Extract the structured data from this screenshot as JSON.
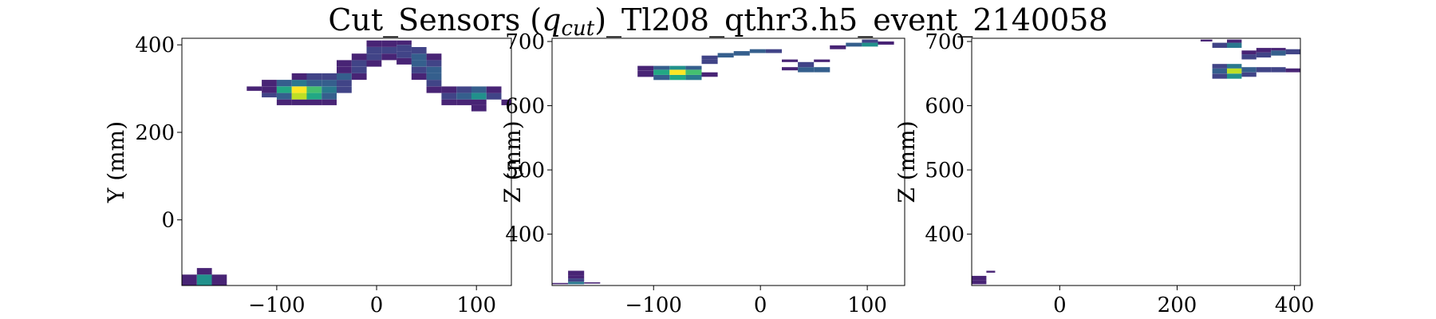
{
  "figure": {
    "title_parts": [
      "Cut_Sensors (",
      "q",
      "cut",
      ")_Tl208_qthr3.h5_event_2140058"
    ]
  },
  "colormap": [
    "#440154",
    "#482475",
    "#414487",
    "#355f8d",
    "#2a788e",
    "#21918c",
    "#22a884",
    "#44bf70",
    "#7ad151",
    "#bddf26",
    "#fde725"
  ],
  "chart_data": [
    {
      "type": "heatmap",
      "xlabel": "",
      "ylabel": "Y (mm)",
      "xlim": [
        -195,
        135
      ],
      "ylim": [
        -150,
        415
      ],
      "xticks": [
        -100,
        0,
        100
      ],
      "xtick_labels": [
        "−100",
        "0",
        "100"
      ],
      "yticks": [
        0,
        200,
        400
      ],
      "ytick_labels": [
        "0",
        "200",
        "400"
      ],
      "cells": [
        {
          "x0": -195,
          "x1": -180,
          "y0": -150,
          "y1": -125,
          "v": 0.05
        },
        {
          "x0": -180,
          "x1": -165,
          "y0": -150,
          "y1": -125,
          "v": 0.45
        },
        {
          "x0": -165,
          "x1": -150,
          "y0": -150,
          "y1": -125,
          "v": 0.05
        },
        {
          "x0": -180,
          "x1": -165,
          "y0": -125,
          "y1": -110,
          "v": 0.08
        },
        {
          "x0": -130,
          "x1": -115,
          "y0": 295,
          "y1": 305,
          "v": 0.05
        },
        {
          "x0": -115,
          "x1": -100,
          "y0": 290,
          "y1": 305,
          "v": 0.1
        },
        {
          "x0": -115,
          "x1": -100,
          "y0": 280,
          "y1": 290,
          "v": 0.2
        },
        {
          "x0": -115,
          "x1": -100,
          "y0": 305,
          "y1": 320,
          "v": 0.05
        },
        {
          "x0": -100,
          "x1": -85,
          "y0": 290,
          "y1": 305,
          "v": 0.55
        },
        {
          "x0": -100,
          "x1": -85,
          "y0": 305,
          "y1": 320,
          "v": 0.25
        },
        {
          "x0": -100,
          "x1": -85,
          "y0": 275,
          "y1": 290,
          "v": 0.3
        },
        {
          "x0": -100,
          "x1": -85,
          "y0": 262,
          "y1": 275,
          "v": 0.05
        },
        {
          "x0": -85,
          "x1": -70,
          "y0": 290,
          "y1": 305,
          "v": 1.0
        },
        {
          "x0": -85,
          "x1": -70,
          "y0": 275,
          "y1": 290,
          "v": 0.9
        },
        {
          "x0": -85,
          "x1": -70,
          "y0": 305,
          "y1": 320,
          "v": 0.35
        },
        {
          "x0": -85,
          "x1": -70,
          "y0": 320,
          "y1": 335,
          "v": 0.1
        },
        {
          "x0": -85,
          "x1": -70,
          "y0": 262,
          "y1": 275,
          "v": 0.12
        },
        {
          "x0": -70,
          "x1": -55,
          "y0": 290,
          "y1": 305,
          "v": 0.7
        },
        {
          "x0": -70,
          "x1": -55,
          "y0": 275,
          "y1": 290,
          "v": 0.6
        },
        {
          "x0": -70,
          "x1": -55,
          "y0": 305,
          "y1": 320,
          "v": 0.3
        },
        {
          "x0": -70,
          "x1": -55,
          "y0": 320,
          "y1": 335,
          "v": 0.15
        },
        {
          "x0": -70,
          "x1": -55,
          "y0": 262,
          "y1": 275,
          "v": 0.1
        },
        {
          "x0": -55,
          "x1": -40,
          "y0": 275,
          "y1": 290,
          "v": 0.3
        },
        {
          "x0": -55,
          "x1": -40,
          "y0": 290,
          "y1": 305,
          "v": 0.35
        },
        {
          "x0": -55,
          "x1": -40,
          "y0": 305,
          "y1": 320,
          "v": 0.25
        },
        {
          "x0": -55,
          "x1": -40,
          "y0": 320,
          "y1": 335,
          "v": 0.2
        },
        {
          "x0": -55,
          "x1": -40,
          "y0": 262,
          "y1": 275,
          "v": 0.06
        },
        {
          "x0": -40,
          "x1": -25,
          "y0": 290,
          "y1": 305,
          "v": 0.15
        },
        {
          "x0": -40,
          "x1": -25,
          "y0": 305,
          "y1": 320,
          "v": 0.2
        },
        {
          "x0": -40,
          "x1": -25,
          "y0": 320,
          "y1": 335,
          "v": 0.25
        },
        {
          "x0": -40,
          "x1": -25,
          "y0": 335,
          "y1": 350,
          "v": 0.1
        },
        {
          "x0": -40,
          "x1": -25,
          "y0": 350,
          "y1": 365,
          "v": 0.05
        },
        {
          "x0": -25,
          "x1": -10,
          "y0": 320,
          "y1": 335,
          "v": 0.1
        },
        {
          "x0": -25,
          "x1": -10,
          "y0": 335,
          "y1": 350,
          "v": 0.15
        },
        {
          "x0": -25,
          "x1": -10,
          "y0": 350,
          "y1": 365,
          "v": 0.2
        },
        {
          "x0": -25,
          "x1": -10,
          "y0": 365,
          "y1": 380,
          "v": 0.1
        },
        {
          "x0": -10,
          "x1": 5,
          "y0": 350,
          "y1": 365,
          "v": 0.1
        },
        {
          "x0": -10,
          "x1": 5,
          "y0": 365,
          "y1": 380,
          "v": 0.2
        },
        {
          "x0": -10,
          "x1": 5,
          "y0": 380,
          "y1": 395,
          "v": 0.15
        },
        {
          "x0": -10,
          "x1": 5,
          "y0": 395,
          "y1": 410,
          "v": 0.05
        },
        {
          "x0": 5,
          "x1": 20,
          "y0": 365,
          "y1": 380,
          "v": 0.1
        },
        {
          "x0": 5,
          "x1": 20,
          "y0": 380,
          "y1": 395,
          "v": 0.15
        },
        {
          "x0": 5,
          "x1": 20,
          "y0": 395,
          "y1": 410,
          "v": 0.1
        },
        {
          "x0": 20,
          "x1": 35,
          "y0": 355,
          "y1": 370,
          "v": 0.05
        },
        {
          "x0": 20,
          "x1": 35,
          "y0": 370,
          "y1": 385,
          "v": 0.15
        },
        {
          "x0": 20,
          "x1": 35,
          "y0": 385,
          "y1": 400,
          "v": 0.2
        },
        {
          "x0": 20,
          "x1": 35,
          "y0": 400,
          "y1": 410,
          "v": 0.08
        },
        {
          "x0": 35,
          "x1": 50,
          "y0": 320,
          "y1": 335,
          "v": 0.08
        },
        {
          "x0": 35,
          "x1": 50,
          "y0": 335,
          "y1": 350,
          "v": 0.15
        },
        {
          "x0": 35,
          "x1": 50,
          "y0": 350,
          "y1": 365,
          "v": 0.25
        },
        {
          "x0": 35,
          "x1": 50,
          "y0": 365,
          "y1": 380,
          "v": 0.25
        },
        {
          "x0": 35,
          "x1": 50,
          "y0": 380,
          "y1": 395,
          "v": 0.15
        },
        {
          "x0": 50,
          "x1": 65,
          "y0": 290,
          "y1": 305,
          "v": 0.1
        },
        {
          "x0": 50,
          "x1": 65,
          "y0": 305,
          "y1": 320,
          "v": 0.15
        },
        {
          "x0": 50,
          "x1": 65,
          "y0": 320,
          "y1": 335,
          "v": 0.3
        },
        {
          "x0": 50,
          "x1": 65,
          "y0": 335,
          "y1": 350,
          "v": 0.25
        },
        {
          "x0": 50,
          "x1": 65,
          "y0": 350,
          "y1": 365,
          "v": 0.15
        },
        {
          "x0": 50,
          "x1": 65,
          "y0": 365,
          "y1": 380,
          "v": 0.1
        },
        {
          "x0": 65,
          "x1": 80,
          "y0": 290,
          "y1": 305,
          "v": 0.1
        },
        {
          "x0": 65,
          "x1": 80,
          "y0": 275,
          "y1": 290,
          "v": 0.2
        },
        {
          "x0": 65,
          "x1": 80,
          "y0": 262,
          "y1": 275,
          "v": 0.05
        },
        {
          "x0": 80,
          "x1": 95,
          "y0": 290,
          "y1": 305,
          "v": 0.2
        },
        {
          "x0": 80,
          "x1": 95,
          "y0": 275,
          "y1": 290,
          "v": 0.3
        },
        {
          "x0": 80,
          "x1": 95,
          "y0": 262,
          "y1": 275,
          "v": 0.1
        },
        {
          "x0": 95,
          "x1": 110,
          "y0": 290,
          "y1": 305,
          "v": 0.25
        },
        {
          "x0": 95,
          "x1": 110,
          "y0": 275,
          "y1": 290,
          "v": 0.45
        },
        {
          "x0": 95,
          "x1": 110,
          "y0": 262,
          "y1": 275,
          "v": 0.1
        },
        {
          "x0": 95,
          "x1": 110,
          "y0": 248,
          "y1": 262,
          "v": 0.05
        },
        {
          "x0": 110,
          "x1": 125,
          "y0": 275,
          "y1": 290,
          "v": 0.2
        },
        {
          "x0": 110,
          "x1": 125,
          "y0": 290,
          "y1": 305,
          "v": 0.1
        },
        {
          "x0": 125,
          "x1": 135,
          "y0": 262,
          "y1": 275,
          "v": 0.06
        }
      ]
    },
    {
      "type": "heatmap",
      "xlabel": "",
      "ylabel": "Z (mm)",
      "xlim": [
        -195,
        135
      ],
      "ylim": [
        320,
        705
      ],
      "xticks": [
        -100,
        0,
        100
      ],
      "xtick_labels": [
        "−100",
        "0",
        "100"
      ],
      "yticks": [
        400,
        500,
        600,
        700
      ],
      "ytick_labels": [
        "400",
        "500",
        "600",
        "700"
      ],
      "cells": [
        {
          "x0": -195,
          "x1": -180,
          "y0": 322,
          "y1": 324,
          "v": 0.05
        },
        {
          "x0": -180,
          "x1": -165,
          "y0": 322,
          "y1": 326,
          "v": 0.4
        },
        {
          "x0": -180,
          "x1": -165,
          "y0": 326,
          "y1": 331,
          "v": 0.15
        },
        {
          "x0": -180,
          "x1": -165,
          "y0": 331,
          "y1": 336,
          "v": 0.1
        },
        {
          "x0": -180,
          "x1": -165,
          "y0": 336,
          "y1": 343,
          "v": 0.05
        },
        {
          "x0": -165,
          "x1": -150,
          "y0": 323,
          "y1": 325,
          "v": 0.05
        },
        {
          "x0": -115,
          "x1": -100,
          "y0": 655,
          "y1": 662,
          "v": 0.1
        },
        {
          "x0": -115,
          "x1": -100,
          "y0": 645,
          "y1": 655,
          "v": 0.05
        },
        {
          "x0": -100,
          "x1": -85,
          "y0": 640,
          "y1": 648,
          "v": 0.3
        },
        {
          "x0": -100,
          "x1": -85,
          "y0": 648,
          "y1": 656,
          "v": 0.55
        },
        {
          "x0": -100,
          "x1": -85,
          "y0": 656,
          "y1": 662,
          "v": 0.25
        },
        {
          "x0": -85,
          "x1": -70,
          "y0": 640,
          "y1": 648,
          "v": 0.6
        },
        {
          "x0": -85,
          "x1": -70,
          "y0": 648,
          "y1": 656,
          "v": 1.0
        },
        {
          "x0": -85,
          "x1": -70,
          "y0": 656,
          "y1": 662,
          "v": 0.45
        },
        {
          "x0": -70,
          "x1": -55,
          "y0": 640,
          "y1": 648,
          "v": 0.4
        },
        {
          "x0": -70,
          "x1": -55,
          "y0": 648,
          "y1": 656,
          "v": 0.7
        },
        {
          "x0": -70,
          "x1": -55,
          "y0": 656,
          "y1": 662,
          "v": 0.3
        },
        {
          "x0": -55,
          "x1": -40,
          "y0": 645,
          "y1": 652,
          "v": 0.1
        },
        {
          "x0": -55,
          "x1": -40,
          "y0": 665,
          "y1": 672,
          "v": 0.15
        },
        {
          "x0": -55,
          "x1": -40,
          "y0": 672,
          "y1": 678,
          "v": 0.2
        },
        {
          "x0": -40,
          "x1": -25,
          "y0": 675,
          "y1": 682,
          "v": 0.25
        },
        {
          "x0": -25,
          "x1": -10,
          "y0": 678,
          "y1": 685,
          "v": 0.3
        },
        {
          "x0": -10,
          "x1": 5,
          "y0": 682,
          "y1": 688,
          "v": 0.3
        },
        {
          "x0": 5,
          "x1": 20,
          "y0": 682,
          "y1": 688,
          "v": 0.15
        },
        {
          "x0": 20,
          "x1": 35,
          "y0": 655,
          "y1": 660,
          "v": 0.1
        },
        {
          "x0": 20,
          "x1": 35,
          "y0": 668,
          "y1": 672,
          "v": 0.1
        },
        {
          "x0": 35,
          "x1": 50,
          "y0": 652,
          "y1": 660,
          "v": 0.3
        },
        {
          "x0": 35,
          "x1": 50,
          "y0": 660,
          "y1": 668,
          "v": 0.2
        },
        {
          "x0": 50,
          "x1": 65,
          "y0": 652,
          "y1": 660,
          "v": 0.25
        },
        {
          "x0": 50,
          "x1": 65,
          "y0": 668,
          "y1": 672,
          "v": 0.1
        },
        {
          "x0": 65,
          "x1": 80,
          "y0": 688,
          "y1": 694,
          "v": 0.1
        },
        {
          "x0": 80,
          "x1": 95,
          "y0": 692,
          "y1": 698,
          "v": 0.25
        },
        {
          "x0": 95,
          "x1": 110,
          "y0": 692,
          "y1": 698,
          "v": 0.45
        },
        {
          "x0": 95,
          "x1": 110,
          "y0": 698,
          "y1": 703,
          "v": 0.2
        },
        {
          "x0": 110,
          "x1": 125,
          "y0": 695,
          "y1": 700,
          "v": 0.05
        }
      ]
    },
    {
      "type": "heatmap",
      "xlabel": "",
      "ylabel": "Z (mm)",
      "xlim": [
        -150,
        410
      ],
      "ylim": [
        320,
        705
      ],
      "xticks": [
        0,
        200,
        400
      ],
      "xtick_labels": [
        "0",
        "200",
        "400"
      ],
      "yticks": [
        400,
        500,
        600,
        700
      ],
      "ytick_labels": [
        "400",
        "500",
        "600",
        "700"
      ],
      "cells": [
        {
          "x0": -150,
          "x1": -125,
          "y0": 322,
          "y1": 328,
          "v": 0.05
        },
        {
          "x0": -150,
          "x1": -125,
          "y0": 328,
          "y1": 335,
          "v": 0.1
        },
        {
          "x0": -125,
          "x1": -110,
          "y0": 340,
          "y1": 343,
          "v": 0.05
        },
        {
          "x0": 240,
          "x1": 260,
          "y0": 700,
          "y1": 703,
          "v": 0.05
        },
        {
          "x0": 260,
          "x1": 285,
          "y0": 690,
          "y1": 698,
          "v": 0.2
        },
        {
          "x0": 285,
          "x1": 310,
          "y0": 690,
          "y1": 698,
          "v": 0.4
        },
        {
          "x0": 285,
          "x1": 310,
          "y0": 698,
          "y1": 703,
          "v": 0.1
        },
        {
          "x0": 260,
          "x1": 285,
          "y0": 642,
          "y1": 650,
          "v": 0.2
        },
        {
          "x0": 260,
          "x1": 285,
          "y0": 650,
          "y1": 658,
          "v": 0.3
        },
        {
          "x0": 260,
          "x1": 285,
          "y0": 658,
          "y1": 665,
          "v": 0.15
        },
        {
          "x0": 285,
          "x1": 310,
          "y0": 642,
          "y1": 650,
          "v": 0.5
        },
        {
          "x0": 285,
          "x1": 310,
          "y0": 650,
          "y1": 658,
          "v": 0.9
        },
        {
          "x0": 285,
          "x1": 310,
          "y0": 658,
          "y1": 665,
          "v": 0.4
        },
        {
          "x0": 310,
          "x1": 335,
          "y0": 645,
          "y1": 652,
          "v": 0.2
        },
        {
          "x0": 310,
          "x1": 335,
          "y0": 652,
          "y1": 660,
          "v": 0.3
        },
        {
          "x0": 310,
          "x1": 335,
          "y0": 672,
          "y1": 680,
          "v": 0.15
        },
        {
          "x0": 310,
          "x1": 335,
          "y0": 680,
          "y1": 686,
          "v": 0.1
        },
        {
          "x0": 335,
          "x1": 360,
          "y0": 652,
          "y1": 660,
          "v": 0.15
        },
        {
          "x0": 335,
          "x1": 360,
          "y0": 675,
          "y1": 683,
          "v": 0.2
        },
        {
          "x0": 335,
          "x1": 360,
          "y0": 683,
          "y1": 690,
          "v": 0.1
        },
        {
          "x0": 360,
          "x1": 385,
          "y0": 652,
          "y1": 660,
          "v": 0.2
        },
        {
          "x0": 360,
          "x1": 385,
          "y0": 678,
          "y1": 686,
          "v": 0.25
        },
        {
          "x0": 360,
          "x1": 385,
          "y0": 686,
          "y1": 690,
          "v": 0.1
        },
        {
          "x0": 385,
          "x1": 410,
          "y0": 652,
          "y1": 658,
          "v": 0.1
        },
        {
          "x0": 385,
          "x1": 410,
          "y0": 680,
          "y1": 688,
          "v": 0.2
        }
      ]
    }
  ]
}
